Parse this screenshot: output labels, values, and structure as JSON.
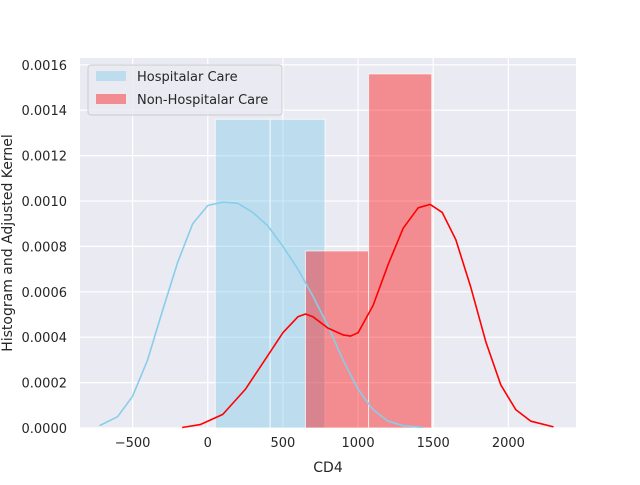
{
  "chart_data": {
    "type": "bar",
    "xlabel": "CD4",
    "ylabel": "Histogram and Adjusted Kernel",
    "xlim": [
      -850,
      2450
    ],
    "ylim": [
      0,
      0.00163
    ],
    "xticks": [
      -500,
      0,
      500,
      1000,
      1500,
      2000
    ],
    "xtick_labels": [
      "−500",
      "0",
      "500",
      "1000",
      "1500",
      "2000"
    ],
    "yticks": [
      0,
      0.0002,
      0.0004,
      0.0006,
      0.0008,
      0.001,
      0.0012,
      0.0014,
      0.0016
    ],
    "ytick_labels": [
      "0.0000",
      "0.0002",
      "0.0004",
      "0.0006",
      "0.0008",
      "0.0010",
      "0.0012",
      "0.0014",
      "0.0016"
    ],
    "grid": true,
    "legend_position": "top-left",
    "series": [
      {
        "name": "Hospitalar Care",
        "color": "#87ceeb",
        "bars": [
          {
            "x0": 50,
            "x1": 415,
            "height": 0.00136
          },
          {
            "x0": 415,
            "x1": 780,
            "height": 0.00136
          }
        ],
        "kde": [
          [
            -720,
            1e-05
          ],
          [
            -600,
            5e-05
          ],
          [
            -500,
            0.00014
          ],
          [
            -400,
            0.0003
          ],
          [
            -300,
            0.00052
          ],
          [
            -200,
            0.00073
          ],
          [
            -100,
            0.0009
          ],
          [
            0,
            0.00098
          ],
          [
            100,
            0.000995
          ],
          [
            200,
            0.00099
          ],
          [
            300,
            0.00095
          ],
          [
            400,
            0.00089
          ],
          [
            500,
            0.0008
          ],
          [
            600,
            0.0007
          ],
          [
            700,
            0.00058
          ],
          [
            800,
            0.00045
          ],
          [
            900,
            0.0003
          ],
          [
            1000,
            0.00017
          ],
          [
            1100,
            8e-05
          ],
          [
            1200,
            3e-05
          ],
          [
            1300,
            1e-05
          ],
          [
            1430,
            3e-06
          ]
        ]
      },
      {
        "name": "Non-Hospitalar Care",
        "color": "#ff0000",
        "bars": [
          {
            "x0": 650,
            "x1": 1070,
            "height": 0.00078
          },
          {
            "x0": 1070,
            "x1": 1490,
            "height": 0.00156
          }
        ],
        "kde": [
          [
            -170,
            2e-06
          ],
          [
            -50,
            1.5e-05
          ],
          [
            100,
            6e-05
          ],
          [
            250,
            0.00017
          ],
          [
            400,
            0.00032
          ],
          [
            500,
            0.00042
          ],
          [
            600,
            0.00049
          ],
          [
            650,
            0.000502
          ],
          [
            700,
            0.00049
          ],
          [
            800,
            0.00044
          ],
          [
            900,
            0.00041
          ],
          [
            950,
            0.000405
          ],
          [
            1000,
            0.00042
          ],
          [
            1100,
            0.00054
          ],
          [
            1200,
            0.00072
          ],
          [
            1300,
            0.00088
          ],
          [
            1400,
            0.00097
          ],
          [
            1480,
            0.000985
          ],
          [
            1560,
            0.00095
          ],
          [
            1650,
            0.00083
          ],
          [
            1750,
            0.00062
          ],
          [
            1850,
            0.00038
          ],
          [
            1950,
            0.00019
          ],
          [
            2050,
            8e-05
          ],
          [
            2150,
            3e-05
          ],
          [
            2300,
            5e-06
          ]
        ]
      }
    ]
  }
}
